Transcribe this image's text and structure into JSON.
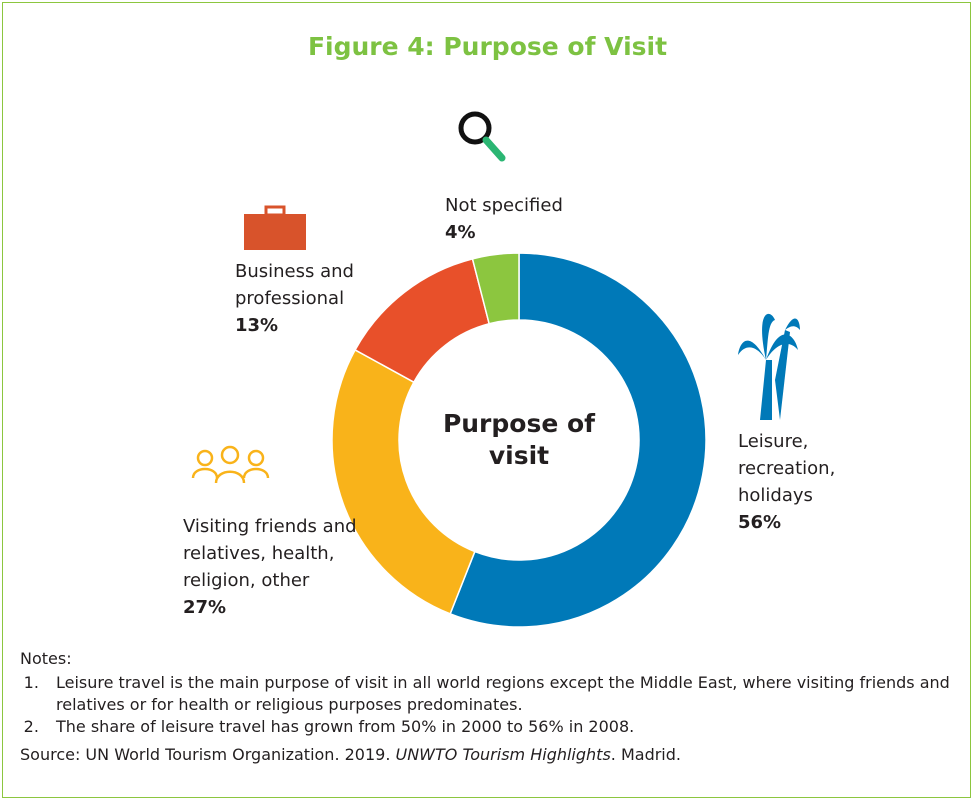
{
  "chart_data": {
    "type": "donut",
    "title": "Figure 4: Purpose of Visit",
    "center_label": "Purpose of visit",
    "categories": [
      "Leisure, recreation, holidays",
      "Visiting friends and relatives, health, religion, other",
      "Business and professional",
      "Not specified"
    ],
    "values": [
      56,
      27,
      13,
      4
    ],
    "value_labels": [
      "56%",
      "27%",
      "13%",
      "4%"
    ],
    "colors": [
      "#0079b8",
      "#f9b31a",
      "#e8502a",
      "#8cc63f"
    ]
  },
  "notes": {
    "heading": "Notes:",
    "items": [
      "Leisure travel is the main purpose of visit in all world regions except the Middle East, where visiting friends and relatives or for health or religious purposes predominates.",
      "The share of leisure travel has grown from 50% in 2000 to 56% in 2008."
    ]
  },
  "source": {
    "prefix": "Source: UN World Tourism Organization. 2019. ",
    "italic": "UNWTO Tourism Highlights",
    "suffix": ". Madrid."
  }
}
